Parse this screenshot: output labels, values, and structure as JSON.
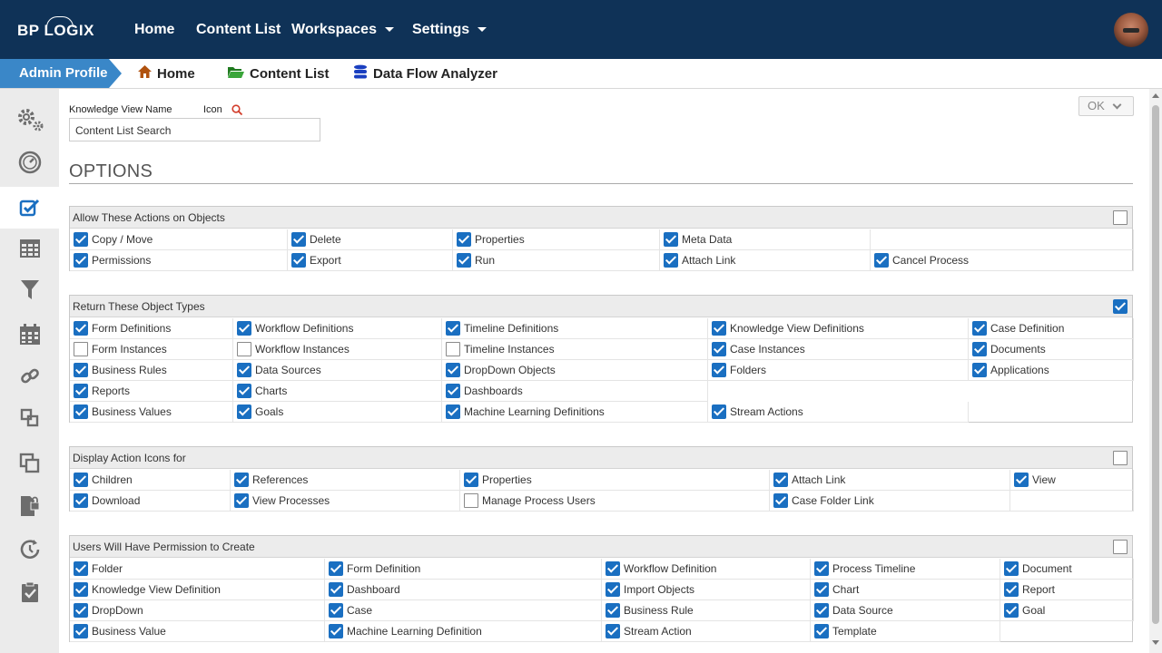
{
  "header": {
    "logo_text": "BP LOGIX",
    "nav": [
      {
        "label": "Home",
        "dropdown": false
      },
      {
        "label": "Content List",
        "dropdown": false
      },
      {
        "label": "Workspaces",
        "dropdown": true
      },
      {
        "label": "Settings",
        "dropdown": true
      }
    ]
  },
  "breadcrumb": {
    "profile": "Admin Profile",
    "items": [
      {
        "label": "Home",
        "icon": "home-icon"
      },
      {
        "label": "Content List",
        "icon": "folder-open-icon"
      },
      {
        "label": "Data Flow Analyzer",
        "icon": "database-icon"
      }
    ]
  },
  "sidebar": {
    "items": [
      "gears-icon",
      "dashboard-gauge-icon",
      "checkbox-edit-icon",
      "table-grid-icon",
      "filter-icon",
      "calendar-icon",
      "link-icon",
      "squares-icon",
      "copy-squares-icon",
      "locked-file-icon",
      "clock-refresh-icon",
      "clipboard-check-icon"
    ],
    "active_index": 2
  },
  "form": {
    "name_label": "Knowledge View Name",
    "icon_label": "Icon",
    "name_value": "Content List Search",
    "ok_label": "OK",
    "options_title": "OPTIONS"
  },
  "sections": [
    {
      "title": "Allow These Actions on Objects",
      "header_checked": false,
      "items": [
        {
          "label": "Copy / Move",
          "checked": true
        },
        {
          "label": "Delete",
          "checked": true
        },
        {
          "label": "Properties",
          "checked": true
        },
        {
          "label": "Meta Data",
          "checked": true
        },
        {
          "label": "Permissions",
          "checked": true
        },
        {
          "label": "Export",
          "checked": true
        },
        {
          "label": "Run",
          "checked": true
        },
        {
          "label": "Attach Link",
          "checked": true
        },
        {
          "label": "Cancel Process",
          "checked": true
        }
      ]
    },
    {
      "title": "Return These Object Types",
      "header_checked": true,
      "items": [
        {
          "label": "Form Definitions",
          "checked": true
        },
        {
          "label": "Workflow Definitions",
          "checked": true
        },
        {
          "label": "Timeline Definitions",
          "checked": true
        },
        {
          "label": "Knowledge View Definitions",
          "checked": true
        },
        {
          "label": "Case Definition",
          "checked": true
        },
        {
          "label": "Form Instances",
          "checked": false
        },
        {
          "label": "Workflow Instances",
          "checked": false
        },
        {
          "label": "Timeline Instances",
          "checked": false
        },
        {
          "label": "Case Instances",
          "checked": true
        },
        {
          "label": "Documents",
          "checked": true
        },
        {
          "label": "Business Rules",
          "checked": true
        },
        {
          "label": "Data Sources",
          "checked": true
        },
        {
          "label": "DropDown Objects",
          "checked": true
        },
        {
          "label": "Folders",
          "checked": true
        },
        {
          "label": "Applications",
          "checked": true
        },
        {
          "label": "Reports",
          "checked": true
        },
        {
          "label": "Charts",
          "checked": true
        },
        {
          "label": "Dashboards",
          "checked": true
        },
        {
          "label": "Business Values",
          "checked": true
        },
        {
          "label": "Goals",
          "checked": true
        },
        {
          "label": "Machine Learning Definitions",
          "checked": true
        },
        {
          "label": "Stream Actions",
          "checked": true
        }
      ]
    },
    {
      "title": "Display Action Icons for",
      "header_checked": false,
      "items": [
        {
          "label": "Children",
          "checked": true
        },
        {
          "label": "References",
          "checked": true
        },
        {
          "label": "Properties",
          "checked": true
        },
        {
          "label": "Attach Link",
          "checked": true
        },
        {
          "label": "View",
          "checked": true
        },
        {
          "label": "Download",
          "checked": true
        },
        {
          "label": "View Processes",
          "checked": true
        },
        {
          "label": "Manage Process Users",
          "checked": false
        },
        {
          "label": "Case Folder Link",
          "checked": true
        }
      ]
    },
    {
      "title": "Users Will Have Permission to Create",
      "header_checked": false,
      "items": [
        {
          "label": "Folder",
          "checked": true
        },
        {
          "label": "Form Definition",
          "checked": true
        },
        {
          "label": "Workflow Definition",
          "checked": true
        },
        {
          "label": "Process Timeline",
          "checked": true
        },
        {
          "label": "Document",
          "checked": true
        },
        {
          "label": "Knowledge View Definition",
          "checked": true
        },
        {
          "label": "Dashboard",
          "checked": true
        },
        {
          "label": "Import Objects",
          "checked": true
        },
        {
          "label": "Chart",
          "checked": true
        },
        {
          "label": "Report",
          "checked": true
        },
        {
          "label": "DropDown",
          "checked": true
        },
        {
          "label": "Case",
          "checked": true
        },
        {
          "label": "Business Rule",
          "checked": true
        },
        {
          "label": "Data Source",
          "checked": true
        },
        {
          "label": "Goal",
          "checked": true
        },
        {
          "label": "Business Value",
          "checked": true
        },
        {
          "label": "Machine Learning Definition",
          "checked": true
        },
        {
          "label": "Stream Action",
          "checked": true
        },
        {
          "label": "Template",
          "checked": true
        }
      ]
    }
  ]
}
